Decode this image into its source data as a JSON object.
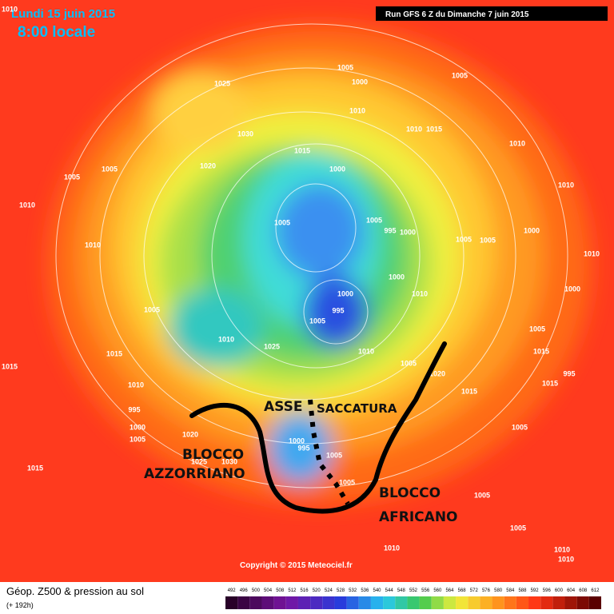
{
  "header": {
    "date": "Lundi 15 juin 2015",
    "time": "8:00 locale",
    "run": "Run GFS 6 Z du Dimanche 7 juin 2015",
    "corner_label": "1010"
  },
  "annotations": {
    "asse": "ASSE",
    "saccatura": "SACCATURA",
    "blocco_azzorriano": [
      "BLOCCO",
      "AZZORRIANO"
    ],
    "blocco_africano": [
      "BLOCCO",
      "AFRICANO"
    ]
  },
  "pressure_labels": [
    "1005",
    "1000",
    "1005",
    "1025",
    "1010",
    "1030",
    "1015",
    "1015",
    "1010",
    "1010",
    "1020",
    "1000",
    "1005",
    "1005",
    "1010",
    "1010",
    "1005",
    "995",
    "1005",
    "1000",
    "1005",
    "1005",
    "1000",
    "1010",
    "1010",
    "1000",
    "1010",
    "1000",
    "995",
    "1005",
    "1005",
    "1000",
    "1025",
    "1010",
    "1010",
    "1005",
    "1015",
    "1015",
    "1005",
    "1020",
    "995",
    "1015",
    "1010",
    "1015",
    "1015",
    "995",
    "1000",
    "1005",
    "1005",
    "1020",
    "1000",
    "995",
    "1005",
    "1025",
    "1030",
    "1015",
    "1005",
    "1005",
    "1010",
    "1010",
    "1010",
    "1005"
  ],
  "copyright": "Copyright © 2015 Meteociel.fr",
  "footer": {
    "title": "Géop. Z500 & pression au sol",
    "lead": "(+ 192h)"
  },
  "legend": {
    "levels": [
      "492",
      "496",
      "500",
      "504",
      "508",
      "512",
      "516",
      "520",
      "524",
      "528",
      "532",
      "536",
      "540",
      "544",
      "548",
      "552",
      "556",
      "560",
      "564",
      "568",
      "572",
      "576",
      "580",
      "584",
      "588",
      "592",
      "596",
      "600",
      "604",
      "608",
      "612"
    ]
  }
}
